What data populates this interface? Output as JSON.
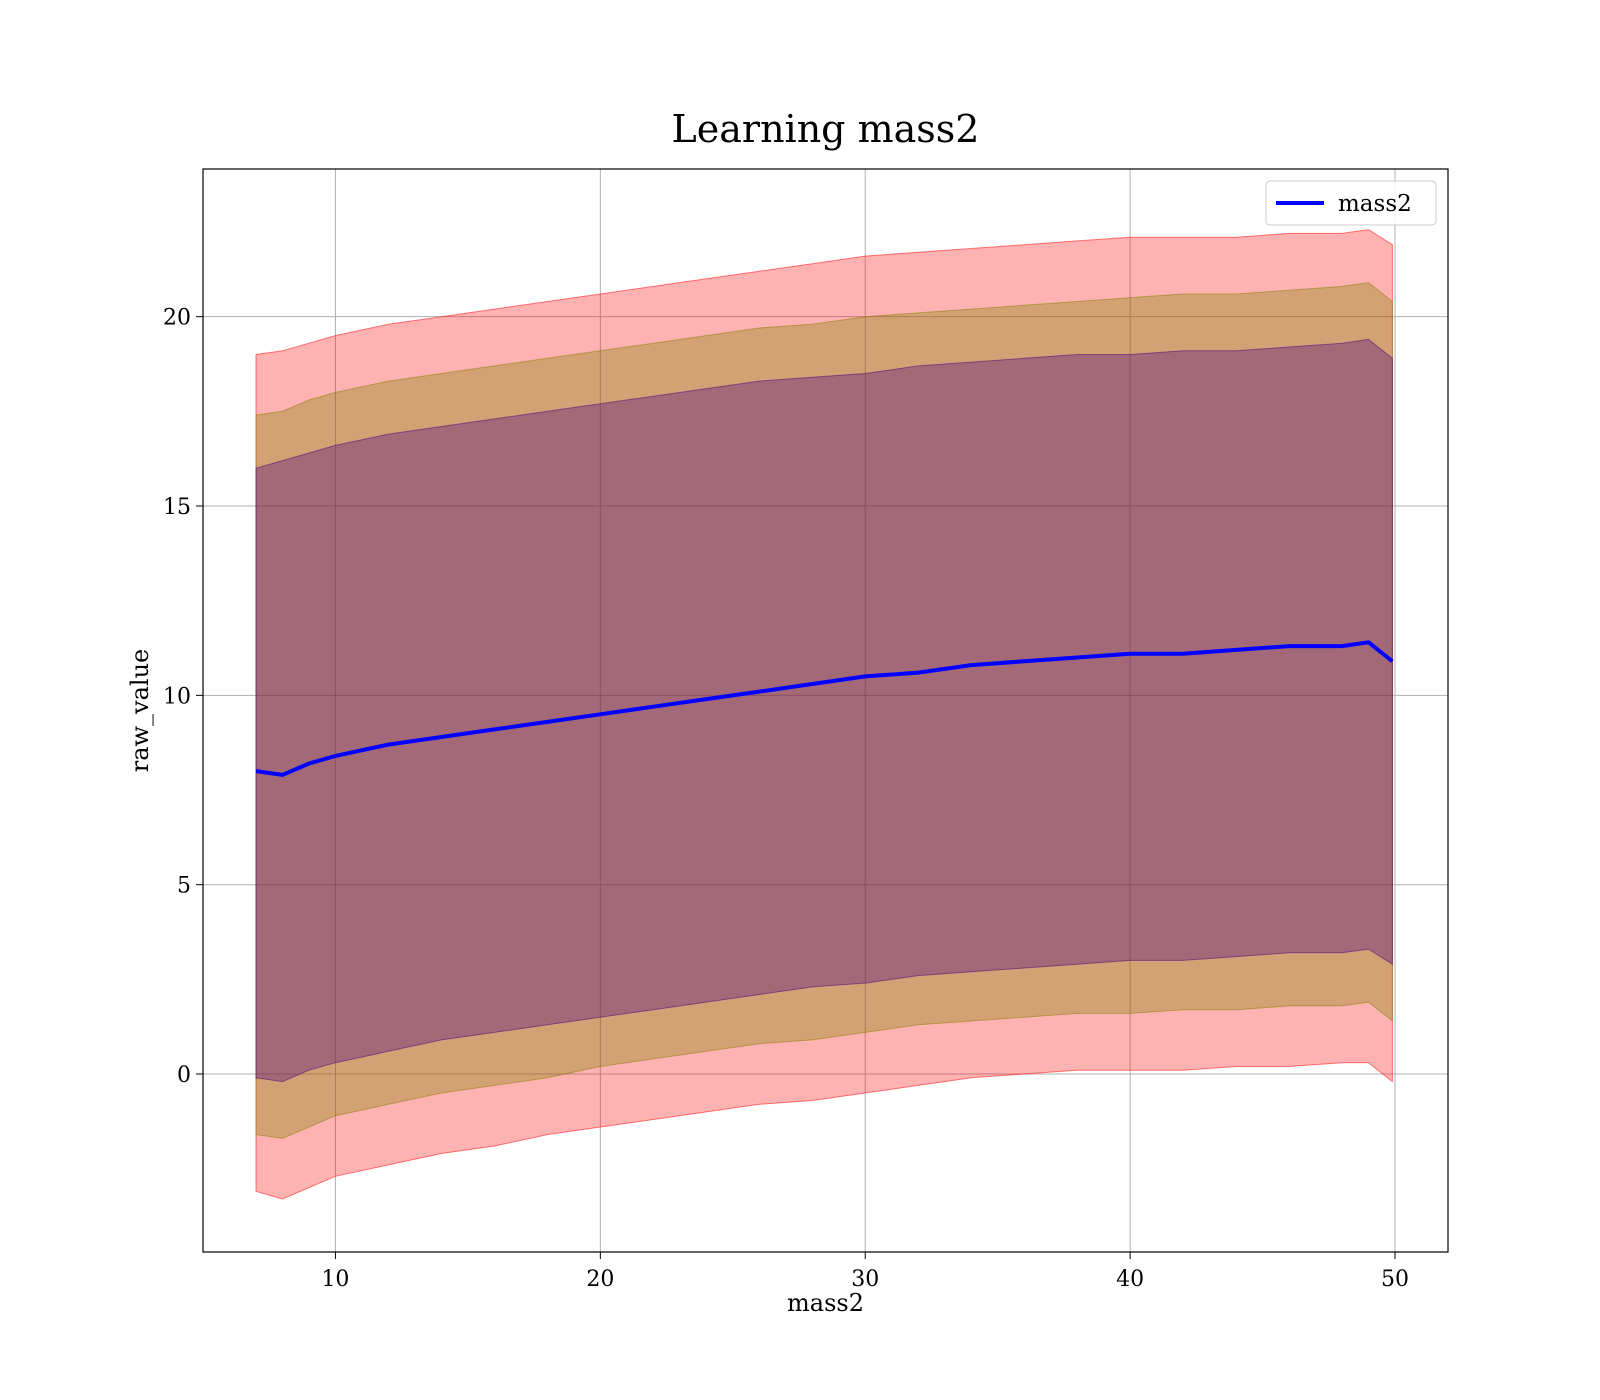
{
  "chart_data": {
    "type": "line",
    "title": "Learning mass2",
    "xlabel": "mass2",
    "ylabel": "raw_value",
    "xlim": [
      5,
      52
    ],
    "ylim": [
      -4.7,
      23.9
    ],
    "xticks": [
      10,
      20,
      30,
      40,
      50
    ],
    "yticks": [
      0,
      5,
      10,
      15,
      20
    ],
    "xtick_labels": [
      "10",
      "20",
      "30",
      "40",
      "50"
    ],
    "ytick_labels": [
      "0",
      "5",
      "10",
      "15",
      "20"
    ],
    "grid": true,
    "legend_position": "top-right",
    "x": [
      7,
      8,
      9,
      10,
      12,
      14,
      16,
      18,
      20,
      22,
      24,
      26,
      28,
      30,
      32,
      34,
      36,
      38,
      40,
      42,
      44,
      46,
      48,
      49,
      49.9
    ],
    "series": [
      {
        "name": "mass2",
        "color": "#0000ff",
        "values": [
          8.0,
          7.9,
          8.2,
          8.4,
          8.7,
          8.9,
          9.1,
          9.3,
          9.5,
          9.7,
          9.9,
          10.1,
          10.3,
          10.5,
          10.6,
          10.8,
          10.9,
          11.0,
          11.1,
          11.1,
          11.2,
          11.3,
          11.3,
          11.4,
          10.9
        ]
      }
    ],
    "bands": [
      {
        "color": "#ff0000",
        "opacity": 0.3,
        "upper": [
          19.0,
          19.1,
          19.3,
          19.5,
          19.8,
          20.0,
          20.2,
          20.4,
          20.6,
          20.8,
          21.0,
          21.2,
          21.4,
          21.6,
          21.7,
          21.8,
          21.9,
          22.0,
          22.1,
          22.1,
          22.1,
          22.2,
          22.2,
          22.3,
          21.9
        ],
        "lower": [
          -3.1,
          -3.3,
          -3.0,
          -2.7,
          -2.4,
          -2.1,
          -1.9,
          -1.6,
          -1.4,
          -1.2,
          -1.0,
          -0.8,
          -0.7,
          -0.5,
          -0.3,
          -0.1,
          0.0,
          0.1,
          0.1,
          0.1,
          0.2,
          0.2,
          0.3,
          0.3,
          -0.2
        ]
      },
      {
        "color": "#808000",
        "opacity": 0.35,
        "upper": [
          17.4,
          17.5,
          17.8,
          18.0,
          18.3,
          18.5,
          18.7,
          18.9,
          19.1,
          19.3,
          19.5,
          19.7,
          19.8,
          20.0,
          20.1,
          20.2,
          20.3,
          20.4,
          20.5,
          20.6,
          20.6,
          20.7,
          20.8,
          20.9,
          20.4
        ],
        "lower": [
          -1.6,
          -1.7,
          -1.4,
          -1.1,
          -0.8,
          -0.5,
          -0.3,
          -0.1,
          0.2,
          0.4,
          0.6,
          0.8,
          0.9,
          1.1,
          1.3,
          1.4,
          1.5,
          1.6,
          1.6,
          1.7,
          1.7,
          1.8,
          1.8,
          1.9,
          1.4
        ]
      },
      {
        "color": "#4b0082",
        "opacity": 0.35,
        "upper": [
          16.0,
          16.2,
          16.4,
          16.6,
          16.9,
          17.1,
          17.3,
          17.5,
          17.7,
          17.9,
          18.1,
          18.3,
          18.4,
          18.5,
          18.7,
          18.8,
          18.9,
          19.0,
          19.0,
          19.1,
          19.1,
          19.2,
          19.3,
          19.4,
          18.9
        ],
        "lower": [
          -0.1,
          -0.2,
          0.1,
          0.3,
          0.6,
          0.9,
          1.1,
          1.3,
          1.5,
          1.7,
          1.9,
          2.1,
          2.3,
          2.4,
          2.6,
          2.7,
          2.8,
          2.9,
          3.0,
          3.0,
          3.1,
          3.2,
          3.2,
          3.3,
          2.9
        ]
      }
    ]
  }
}
